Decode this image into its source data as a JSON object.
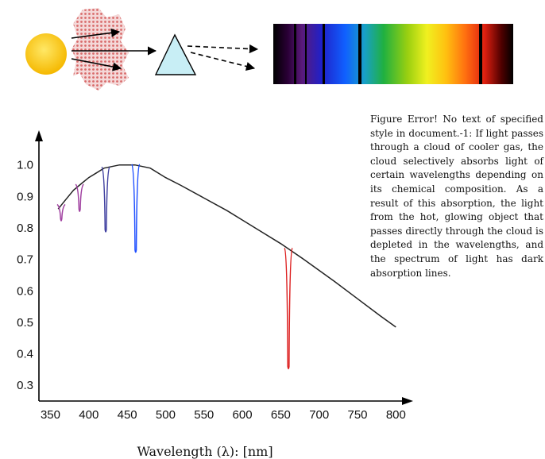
{
  "caption": "Figure Error! No text of specified style in document.-1: If light passes through a cloud of cooler gas, the cloud selectively absorbs light of certain wavelengths depending on its chemical composition. As a result of this absorption, the light from the hot, glowing object that passes directly through the cloud is depleted in the wavelengths, and the spectrum of light has dark absorption lines.",
  "icons": {
    "source": "sun-icon",
    "cloud": "gas-cloud-icon",
    "prism": "prism-icon",
    "spectrum": "absorption-spectrum-strip"
  },
  "colors": {
    "sun": "#f5c400",
    "cloud": "#e8a0a0",
    "prism": "#c8eef5",
    "curve": "#222222"
  },
  "chart_data": {
    "type": "line",
    "title": "",
    "xlabel": "Wavelength (λ): [nm]",
    "ylabel": "",
    "xlim": [
      335,
      810
    ],
    "ylim": [
      0.25,
      1.07
    ],
    "x_ticks": [
      "350",
      "400",
      "450",
      "500",
      "550",
      "600",
      "650",
      "700",
      "750",
      "800"
    ],
    "y_ticks": [
      "0.3",
      "0.4",
      "0.5",
      "0.6",
      "0.7",
      "0.8",
      "0.9",
      "1.0"
    ],
    "series": [
      {
        "x": [
          360,
          370,
          380,
          390,
          400,
          410,
          420,
          430,
          440,
          450,
          460,
          470,
          480,
          500,
          520,
          550,
          580,
          600,
          620,
          650,
          680,
          700,
          720,
          750,
          780,
          800
        ],
        "y": [
          0.86,
          0.89,
          0.92,
          0.94,
          0.96,
          0.975,
          0.99,
          0.995,
          1.0,
          1.0,
          1.0,
          0.995,
          0.99,
          0.96,
          0.935,
          0.895,
          0.855,
          0.825,
          0.795,
          0.75,
          0.7,
          0.665,
          0.63,
          0.575,
          0.52,
          0.485
        ]
      }
    ],
    "absorption_lines": [
      {
        "x": 364,
        "depth_to": 0.83,
        "color": "#a040a0"
      },
      {
        "x": 388,
        "depth_to": 0.86,
        "color": "#a040a0"
      },
      {
        "x": 422,
        "depth_to": 0.795,
        "color": "#4040a0"
      },
      {
        "x": 461,
        "depth_to": 0.73,
        "color": "#2050ff"
      },
      {
        "x": 660,
        "depth_to": 0.36,
        "color": "#dd2020"
      }
    ],
    "grid": false
  }
}
